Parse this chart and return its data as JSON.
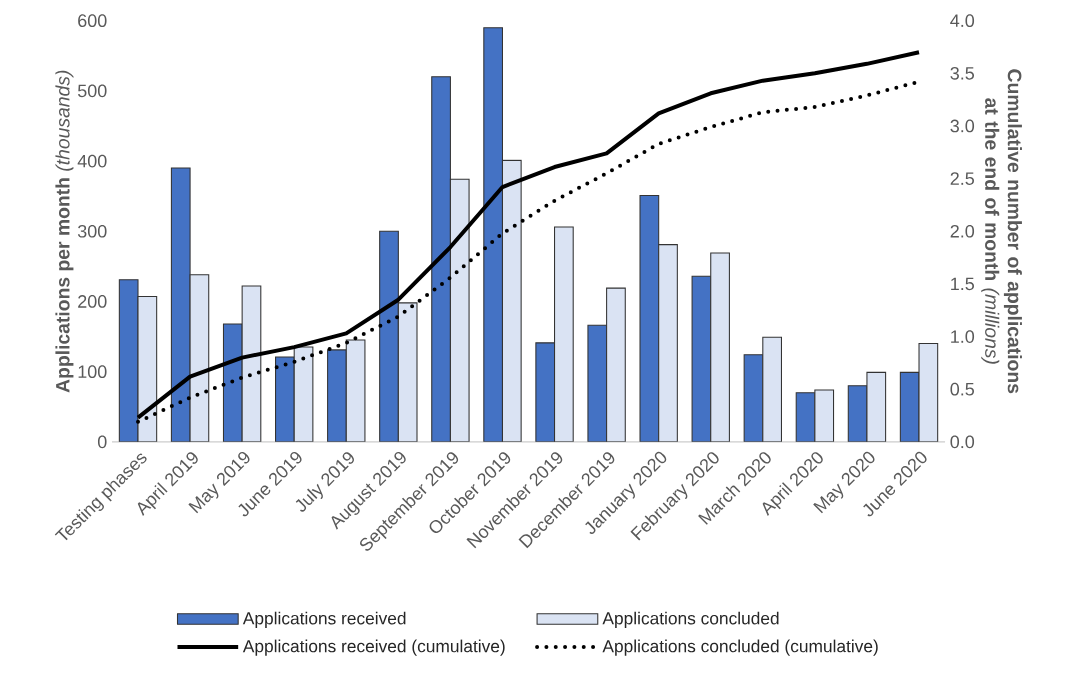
{
  "chart_data": {
    "type": "bar",
    "categories": [
      "Testing phases",
      "April 2019",
      "May 2019",
      "June 2019",
      "July 2019",
      "August 2019",
      "September 2019",
      "October 2019",
      "November 2019",
      "December 2019",
      "January 2020",
      "February 2020",
      "March 2020",
      "April 2020",
      "May 2020",
      "June 2020"
    ],
    "ylabel": "**Applications per month** *(thousands)*",
    "y2label": "**Cumulative number of applications at the end of month** *(millions)*",
    "ylim": [
      0,
      600
    ],
    "yticks": [
      0,
      100,
      200,
      300,
      400,
      500,
      600
    ],
    "y2lim": [
      0,
      4
    ],
    "y2ticks": [
      {
        "value": 0,
        "label": "0.0"
      },
      {
        "value": 0.5,
        "label": "0.5"
      },
      {
        "value": 1,
        "label": "1.0"
      },
      {
        "value": 1.5,
        "label": "1.5"
      },
      {
        "value": 2,
        "label": "2.0"
      },
      {
        "value": 2.5,
        "label": "2.5"
      },
      {
        "value": 3,
        "label": "3.0"
      },
      {
        "value": 3.5,
        "label": "3.5"
      },
      {
        "value": 4,
        "label": "4.0"
      }
    ],
    "legend": "bottom",
    "series": [
      {
        "name": "Applications received",
        "color": "#4472c4",
        "values": [
          231,
          390,
          168,
          121,
          131,
          300,
          520,
          590,
          141,
          166,
          351,
          236,
          124,
          70,
          80,
          99
        ]
      },
      {
        "name": "Applications concluded",
        "color": "#dae3f3",
        "values": [
          207,
          238,
          222,
          135,
          145,
          198,
          374,
          401,
          306,
          219,
          281,
          269,
          149,
          74,
          99,
          140
        ]
      },
      {
        "name": "Applications received (cumulative)",
        "type": "line",
        "axis": "y2",
        "line_style": "solid",
        "color": "#000000",
        "values": [
          0.23,
          0.62,
          0.8,
          0.9,
          1.03,
          1.35,
          1.85,
          2.42,
          2.61,
          2.74,
          3.12,
          3.31,
          3.43,
          3.5,
          3.59,
          3.7
        ]
      },
      {
        "name": "Applications concluded (cumulative)",
        "type": "line",
        "axis": "y2",
        "line_style": "dotted",
        "color": "#000000",
        "values": [
          0.19,
          0.42,
          0.61,
          0.76,
          0.94,
          1.19,
          1.56,
          1.98,
          2.29,
          2.55,
          2.83,
          2.99,
          3.13,
          3.18,
          3.29,
          3.42
        ]
      }
    ]
  }
}
